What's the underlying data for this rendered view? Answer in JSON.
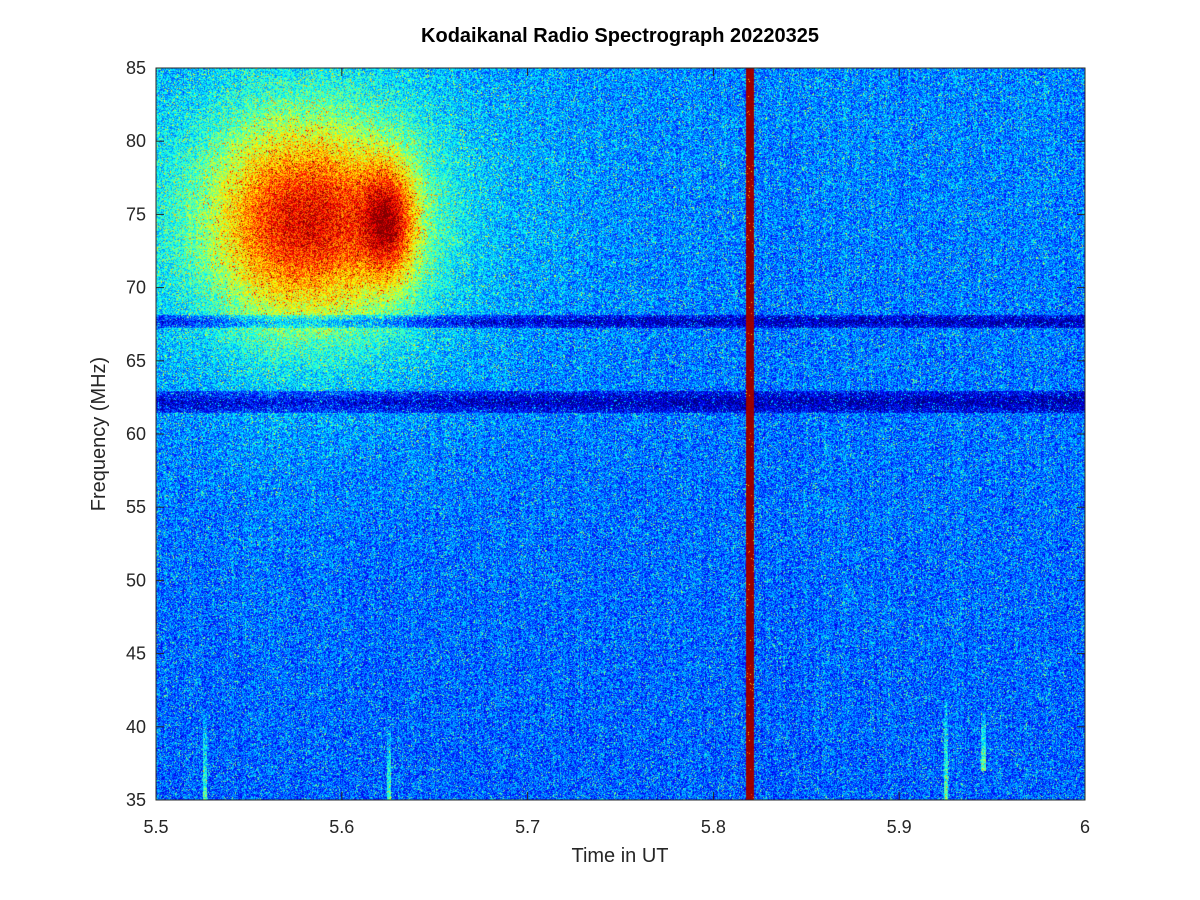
{
  "chart_data": {
    "type": "heatmap",
    "title": "Kodaikanal Radio Spectrograph  20220325",
    "xlabel": "Time in UT",
    "ylabel": "Frequency (MHz)",
    "xlim": [
      5.5,
      6.0
    ],
    "ylim": [
      35,
      85
    ],
    "xticks": [
      5.5,
      5.6,
      5.7,
      5.8,
      5.9,
      6.0
    ],
    "xtick_labels": [
      "5.5",
      "5.6",
      "5.7",
      "5.8",
      "5.9",
      "6"
    ],
    "yticks": [
      35,
      40,
      45,
      50,
      55,
      60,
      65,
      70,
      75,
      80,
      85
    ],
    "ytick_labels": [
      "35",
      "40",
      "45",
      "50",
      "55",
      "60",
      "65",
      "70",
      "75",
      "80",
      "85"
    ],
    "colormap": "jet",
    "grid": false,
    "features": [
      {
        "kind": "broadband_emission",
        "t_start": 5.54,
        "t_end": 5.65,
        "f_low": 60,
        "f_high": 82,
        "peak_t": 5.578,
        "peak_f": 74.5,
        "intensity": 0.5
      },
      {
        "kind": "secondary_emission",
        "t_start": 5.61,
        "t_end": 5.64,
        "f_low": 68,
        "f_high": 80,
        "peak_t": 5.625,
        "peak_f": 74.5,
        "intensity": 0.35
      },
      {
        "kind": "dark_band",
        "f_center": 62.2,
        "f_width": 1.5
      },
      {
        "kind": "dark_band",
        "f_center": 67.7,
        "f_width": 0.9
      },
      {
        "kind": "saturated_interference",
        "t_start": 5.8175,
        "t_end": 5.8215
      },
      {
        "kind": "burst",
        "t": 5.526,
        "f_low": 35,
        "f_high": 41
      },
      {
        "kind": "burst",
        "t": 5.625,
        "f_low": 35,
        "f_high": 40
      },
      {
        "kind": "burst",
        "t": 5.925,
        "f_low": 35,
        "f_high": 42
      },
      {
        "kind": "burst",
        "t": 5.945,
        "f_low": 37,
        "f_high": 41
      }
    ]
  },
  "colors": {
    "text": "#262626",
    "title": "#000000",
    "axes": "#262626",
    "background_low": "#00008f",
    "interference": "#8b0000"
  }
}
